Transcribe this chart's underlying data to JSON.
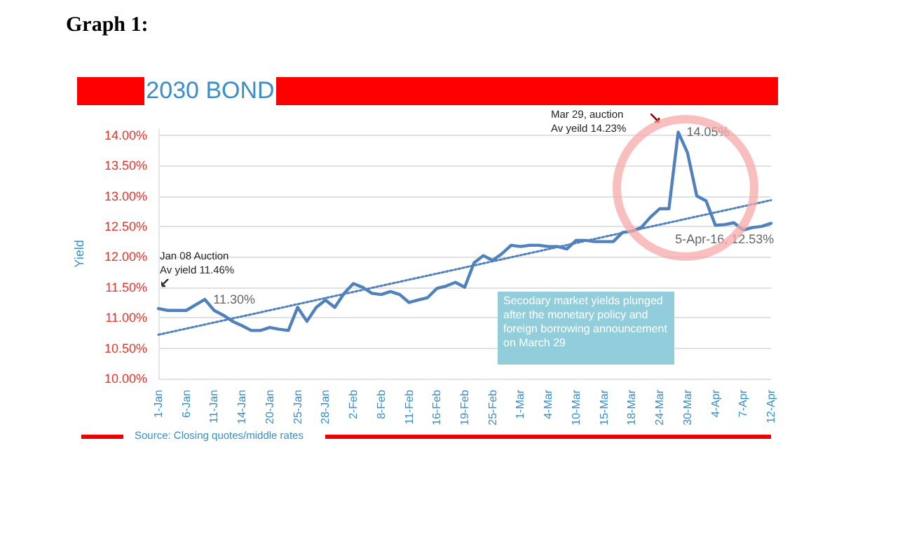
{
  "chart_data": {
    "type": "line",
    "title": "Graph 1:",
    "subtitle": "2030 BOND",
    "ylabel": "Yield",
    "categories": [
      "1-Jan",
      null,
      null,
      "6-Jan",
      null,
      null,
      "11-Jan",
      null,
      null,
      "14-Jan",
      null,
      null,
      "20-Jan",
      null,
      null,
      "25-Jan",
      null,
      null,
      "28-Jan",
      null,
      null,
      "2-Feb",
      null,
      null,
      "8-Feb",
      null,
      null,
      "11-Feb",
      null,
      null,
      "16-Feb",
      null,
      null,
      "19-Feb",
      null,
      null,
      "25-Feb",
      null,
      null,
      "1-Mar",
      null,
      null,
      "4-Mar",
      null,
      null,
      "10-Mar",
      null,
      null,
      "15-Mar",
      null,
      null,
      "18-Mar",
      null,
      null,
      "24-Mar",
      null,
      null,
      "30-Mar",
      null,
      null,
      "4-Apr",
      null,
      null,
      "7-Apr",
      null,
      null,
      "12-Apr"
    ],
    "series": [
      {
        "type": "line",
        "color": "#4f81bd",
        "line_style": "solid",
        "values": [
          11.15,
          11.12,
          11.12,
          11.12,
          11.21,
          11.3,
          11.12,
          11.04,
          10.94,
          10.87,
          10.79,
          10.79,
          10.84,
          10.81,
          10.79,
          11.17,
          10.94,
          11.17,
          11.29,
          11.17,
          11.4,
          11.56,
          11.5,
          11.4,
          11.38,
          11.43,
          11.38,
          11.25,
          11.29,
          11.33,
          11.48,
          11.52,
          11.58,
          11.5,
          11.9,
          12.02,
          11.94,
          12.05,
          12.19,
          12.17,
          12.19,
          12.19,
          12.17,
          12.17,
          12.13,
          12.27,
          12.27,
          12.25,
          12.25,
          12.25,
          12.4,
          12.42,
          12.48,
          12.65,
          12.79,
          12.79,
          14.05,
          13.71,
          13.0,
          12.92,
          12.52,
          12.53,
          12.56,
          12.44,
          12.48,
          12.5,
          12.55
        ],
        "value_labels": [
          null,
          null,
          null,
          null,
          null,
          "11.30%",
          null,
          null,
          null,
          null,
          null,
          null,
          null,
          null,
          null,
          null,
          null,
          null,
          null,
          null,
          null,
          null,
          null,
          null,
          null,
          null,
          null,
          null,
          null,
          null,
          null,
          null,
          null,
          null,
          null,
          null,
          null,
          null,
          null,
          null,
          null,
          null,
          null,
          null,
          null,
          null,
          null,
          null,
          null,
          null,
          null,
          null,
          null,
          null,
          null,
          null,
          "14.05%",
          null,
          null,
          null,
          null,
          "5-Apr-16, 12.53%",
          null,
          null,
          null,
          null,
          null
        ]
      },
      {
        "type": "line",
        "color": "#4f81bd",
        "line_style": "dotted",
        "x": [
          "1-Jan",
          "12-Apr"
        ],
        "values": [
          10.72,
          12.93
        ]
      }
    ],
    "ylim": [
      10,
      14.1
    ],
    "yticks": [
      {
        "value": 10,
        "label": "10.00%"
      },
      {
        "value": 10.5,
        "label": "10.50%"
      },
      {
        "value": 11,
        "label": "11.00%"
      },
      {
        "value": 11.5,
        "label": "11.50%"
      },
      {
        "value": 12,
        "label": "12.00%"
      },
      {
        "value": 12.5,
        "label": "12.50%"
      },
      {
        "value": 13,
        "label": "13.00%"
      },
      {
        "value": 13.5,
        "label": "13.50%"
      },
      {
        "value": 14,
        "label": "14.00%"
      }
    ],
    "grid": "y",
    "marker": "none",
    "annotations": [
      "Jan 08 Auction\nAv yield 11.46%",
      "Mar 29, auction\nAv yeild 14.23%",
      "Secodary market yields plunged after the monetary policy and foreign borrowing announcement on March 29",
      "Source: Closing quotes/middle rates"
    ]
  }
}
